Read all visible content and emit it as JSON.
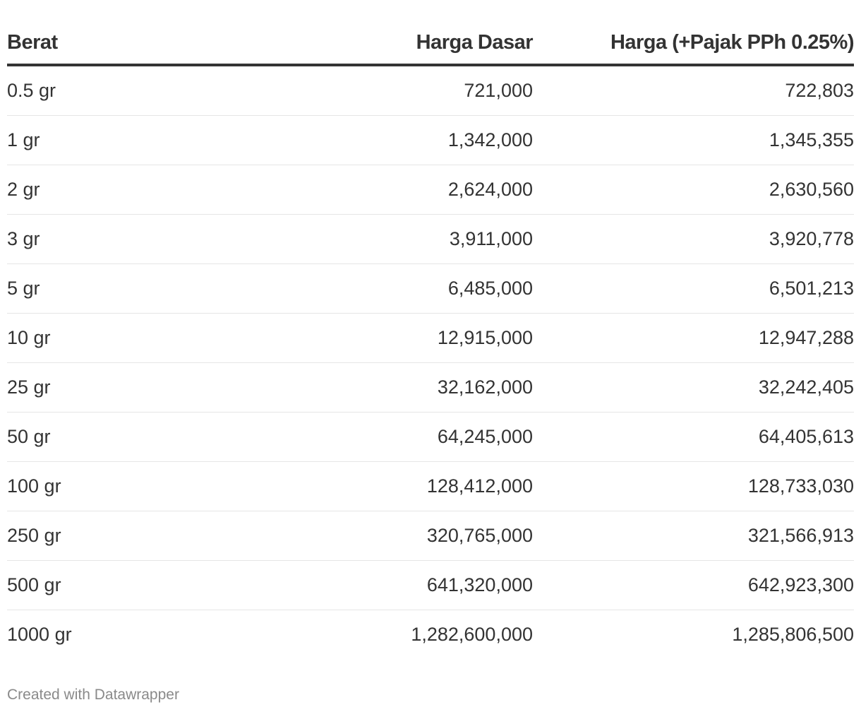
{
  "chart_data": {
    "type": "table",
    "columns": [
      "Berat",
      "Harga Dasar",
      "Harga (+Pajak PPh 0.25%)"
    ],
    "rows": [
      [
        "0.5 gr",
        "721,000",
        "722,803"
      ],
      [
        "1 gr",
        "1,342,000",
        "1,345,355"
      ],
      [
        "2 gr",
        "2,624,000",
        "2,630,560"
      ],
      [
        "3 gr",
        "3,911,000",
        "3,920,778"
      ],
      [
        "5 gr",
        "6,485,000",
        "6,501,213"
      ],
      [
        "10 gr",
        "12,915,000",
        "12,947,288"
      ],
      [
        "25 gr",
        "32,162,000",
        "32,242,405"
      ],
      [
        "50 gr",
        "64,245,000",
        "64,405,613"
      ],
      [
        "100 gr",
        "128,412,000",
        "128,733,030"
      ],
      [
        "250 gr",
        "320,765,000",
        "321,566,913"
      ],
      [
        "500 gr",
        "641,320,000",
        "642,923,300"
      ],
      [
        "1000 gr",
        "1,282,600,000",
        "1,285,806,500"
      ]
    ]
  },
  "footer": {
    "credit": "Created with Datawrapper"
  },
  "colors": {
    "text": "#333333",
    "header_rule": "#333333",
    "row_divider": "#e6e6e6",
    "footer_text": "#8a8a8a"
  }
}
